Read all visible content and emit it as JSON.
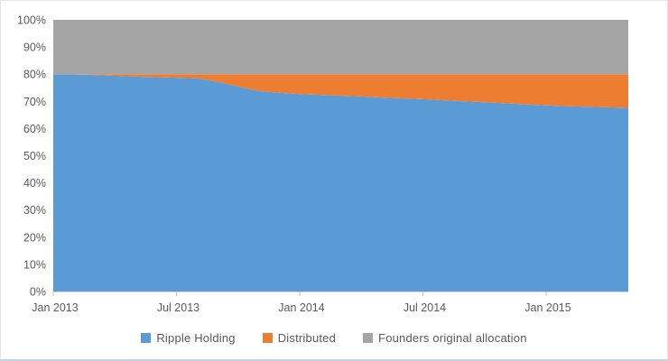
{
  "chart_data": {
    "type": "area",
    "stacked": true,
    "title": "",
    "xlabel": "",
    "ylabel": "",
    "ylim": [
      0,
      100
    ],
    "y_tick_step": 10,
    "y_tick_suffix": "%",
    "grid": false,
    "legend_position": "bottom-center",
    "x": [
      "Jan 2013",
      "Feb 2013",
      "Mar 2013",
      "Apr 2013",
      "May 2013",
      "Jun 2013",
      "Jul 2013",
      "Aug 2013",
      "Sep 2013",
      "Oct 2013",
      "Nov 2013",
      "Dec 2013",
      "Jan 2014",
      "Feb 2014",
      "Mar 2014",
      "Apr 2014",
      "May 2014",
      "Jun 2014",
      "Jul 2014",
      "Aug 2014",
      "Sep 2014",
      "Oct 2014",
      "Nov 2014",
      "Dec 2014",
      "Jan 2015",
      "Feb 2015",
      "Mar 2015",
      "Apr 2015",
      "May 2015"
    ],
    "x_tick_labels": [
      "Jan 2013",
      "Jul 2013",
      "Jan 2014",
      "Jul 2014",
      "Jan 2015"
    ],
    "x_tick_indices": [
      0,
      6,
      12,
      18,
      24
    ],
    "y_tick_labels": [
      "0%",
      "10%",
      "20%",
      "30%",
      "40%",
      "50%",
      "60%",
      "70%",
      "80%",
      "90%",
      "100%"
    ],
    "series": [
      {
        "name": "Ripple Holding",
        "color": "#5B9BD5",
        "values": [
          80.0,
          79.9,
          79.7,
          79.4,
          79.1,
          78.9,
          78.7,
          78.5,
          77.2,
          75.4,
          73.8,
          73.2,
          72.7,
          72.4,
          72.1,
          71.8,
          71.4,
          71.1,
          70.8,
          70.4,
          70.0,
          69.7,
          69.3,
          68.9,
          68.5,
          68.2,
          68.0,
          67.8,
          67.6
        ]
      },
      {
        "name": "Distributed",
        "color": "#ED7D31",
        "values": [
          0.0,
          0.1,
          0.3,
          0.6,
          0.9,
          1.1,
          1.3,
          1.5,
          2.8,
          4.6,
          6.2,
          6.8,
          7.3,
          7.6,
          7.9,
          8.2,
          8.6,
          8.9,
          9.2,
          9.6,
          10.0,
          10.3,
          10.7,
          11.1,
          11.5,
          11.8,
          12.0,
          12.2,
          12.4
        ]
      },
      {
        "name": "Founders original allocation",
        "color": "#A5A5A5",
        "values": [
          20,
          20,
          20,
          20,
          20,
          20,
          20,
          20,
          20,
          20,
          20,
          20,
          20,
          20,
          20,
          20,
          20,
          20,
          20,
          20,
          20,
          20,
          20,
          20,
          20,
          20,
          20,
          20,
          20
        ]
      }
    ],
    "colors": {
      "axis_text": "#595959",
      "axis_line": "#d6d6d6",
      "tick_mark": "#bfbfbf"
    }
  }
}
